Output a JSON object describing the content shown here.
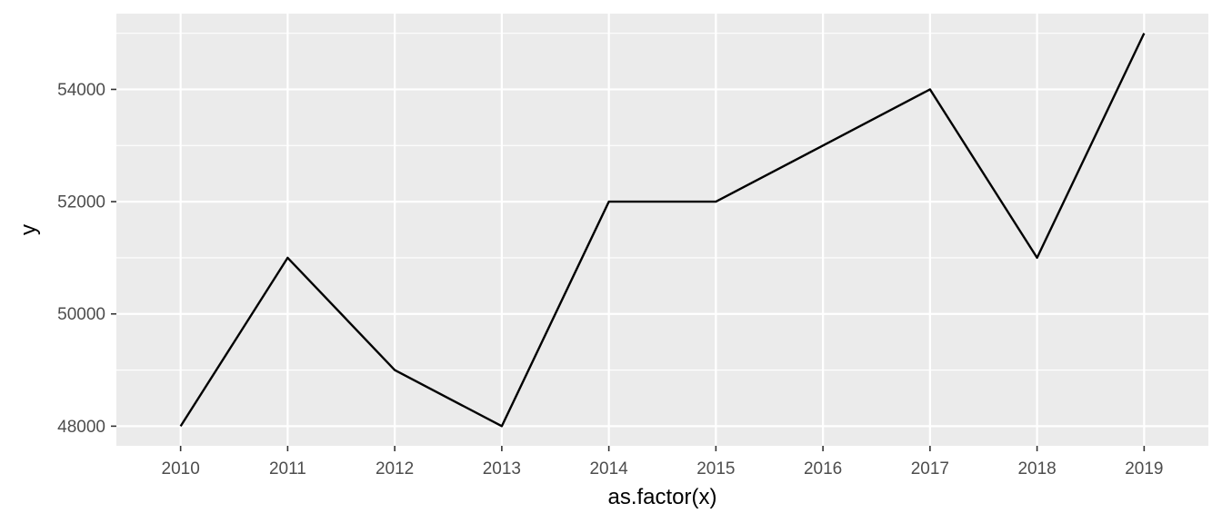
{
  "chart_data": {
    "type": "line",
    "title": "",
    "xlabel": "as.factor(x)",
    "ylabel": "y",
    "categories": [
      "2010",
      "2011",
      "2012",
      "2013",
      "2014",
      "2015",
      "2016",
      "2017",
      "2018",
      "2019"
    ],
    "series": [
      {
        "values": [
          48000,
          51000,
          49000,
          48000,
          52000,
          52000,
          53000,
          54000,
          51000,
          55000
        ]
      }
    ],
    "ylim": [
      47650,
      55350
    ],
    "y_ticks": [
      48000,
      50000,
      52000,
      54000
    ],
    "y_tick_labels": [
      "48000",
      "50000",
      "52000",
      "54000"
    ],
    "y_minor_ticks": [
      49000,
      51000,
      53000,
      55000
    ],
    "grid": true,
    "legend": "none",
    "colors": {
      "panel_background": "#ebebeb",
      "grid_major": "#ffffff",
      "grid_minor": "#ffffff",
      "line": "#000000",
      "tick_text": "#4d4d4d",
      "tick_mark": "#333333",
      "axis_title": "#000000"
    }
  }
}
